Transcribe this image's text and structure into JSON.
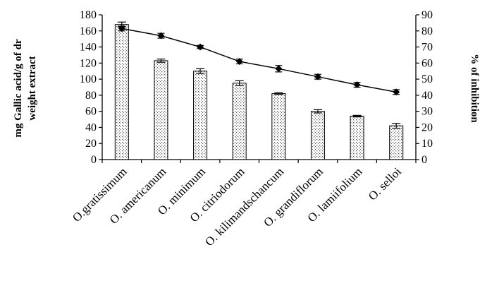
{
  "chart_data": {
    "type": "bar+line",
    "categories": [
      "O.gratissimum",
      "O. americanum",
      "O. minimum",
      "O. citriodorum",
      "O. kilimandschancum",
      "O. grandiflorum",
      "O. lamiifolium",
      "O. selloi"
    ],
    "series": [
      {
        "axis": "left",
        "type": "bar",
        "values": [
          168,
          123,
          110,
          95,
          82,
          60,
          54,
          42
        ],
        "errors": [
          3,
          2,
          3,
          3,
          1,
          2,
          1,
          3
        ]
      },
      {
        "axis": "right",
        "type": "line",
        "values": [
          81.5,
          77,
          70,
          61,
          56.5,
          51.5,
          46.5,
          42
        ],
        "errors": [
          1.5,
          1.5,
          1,
          1.5,
          2,
          1.5,
          1.5,
          1.5
        ]
      }
    ],
    "y_left": {
      "label_line1": "mg Gallic acid/g of dr",
      "label_line2": "weight extract",
      "range": [
        0,
        180
      ],
      "ticks": [
        "0",
        "20",
        "40",
        "60",
        "80",
        "100",
        "120",
        "140",
        "160",
        "180"
      ]
    },
    "y_right": {
      "label": "% of inhibition",
      "range": [
        0,
        90
      ],
      "ticks": [
        "0",
        "10",
        "20",
        "30",
        "40",
        "50",
        "60",
        "70",
        "80",
        "90"
      ]
    },
    "grid": false,
    "legend": "none"
  }
}
